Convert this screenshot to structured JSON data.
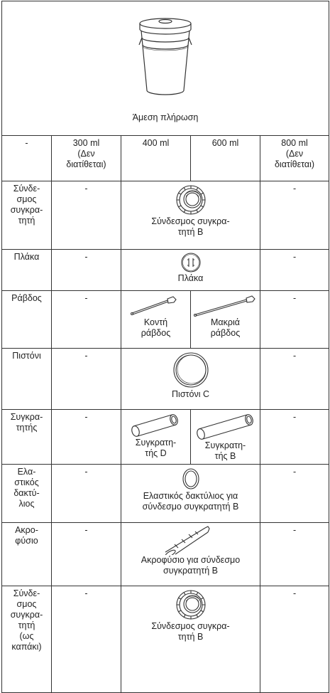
{
  "header": {
    "caption": "Άμεση πλήρωση"
  },
  "table": {
    "columns": [
      "-",
      "300 ml\n(Δεν\nδιατίθεται)",
      "400 ml",
      "600 ml",
      "800 ml\n(Δεν\nδιατίθεται)"
    ],
    "rows": [
      {
        "label": "Σύνδε-\nσμος\nσυγκρα-\nτητή",
        "cells": [
          "-",
          "Σύνδεσμος συγκρα-\nτητή B",
          "-"
        ]
      },
      {
        "label": "Πλάκα",
        "cells": [
          "-",
          "Πλάκα",
          "-"
        ]
      },
      {
        "label": "Ράβδος",
        "cells": [
          "-",
          "Κοντή\nράβδος",
          "Μακριά\nράβδος",
          "-"
        ]
      },
      {
        "label": "Πιστόνι",
        "cells": [
          "-",
          "Πιστόνι C",
          "-"
        ]
      },
      {
        "label": "Συγκρα-\nτητής",
        "cells": [
          "-",
          "Συγκρατη-\nτής D",
          "Συγκρατη-\nτής B",
          "-"
        ]
      },
      {
        "label": "Ελα-\nστικός\nδακτύ-\nλιος",
        "cells": [
          "-",
          "Ελαστικός δακτύλιος για\nσύνδεσμο συγκρατητή B",
          "-"
        ]
      },
      {
        "label": "Ακρο-\nφύσιο",
        "cells": [
          "-",
          "Ακροφύσιο για σύνδεσμο\nσυγκρατητή B",
          "-"
        ]
      },
      {
        "label": "Σύνδε-\nσμος\nσυγκρα-\nτητή\n(ως\nκαπάκι)",
        "cells": [
          "-",
          "Σύνδεσμος συγκρα-\nτητή B",
          "-"
        ]
      }
    ]
  }
}
